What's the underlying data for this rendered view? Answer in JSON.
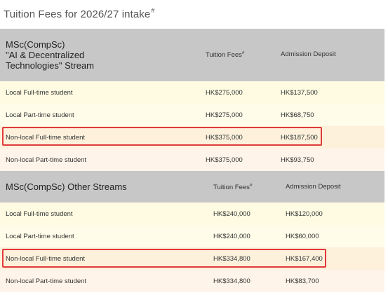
{
  "title": {
    "text": "Tuition Fees for 2026/27 intake",
    "mark": "#"
  },
  "sections": [
    {
      "stream_title": "MSc(CompSc) \"AI & Decentralized Technologies\" Stream",
      "stream_title_lines": [
        "MSc(CompSc)",
        "\"AI & Decentralized",
        "Technologies\" Stream"
      ],
      "col_tuition": "Tuition Fees",
      "col_tuition_mark": "#",
      "col_deposit": "Admission Deposit",
      "rows": [
        {
          "label": "Local Full-time student",
          "tuition": "HK$275,000",
          "deposit": "HK$137,500"
        },
        {
          "label": "Local Part-time student",
          "tuition": "HK$275,000",
          "deposit": "HK$68,750"
        },
        {
          "label": "Non-local Full-time student",
          "tuition": "HK$375,000",
          "deposit": "HK$187,500",
          "highlighted": true
        },
        {
          "label": "Non-local Part-time student",
          "tuition": "HK$375,000",
          "deposit": "HK$93,750"
        }
      ]
    },
    {
      "stream_title": "MSc(CompSc) Other Streams",
      "col_tuition": "Tuition Fees",
      "col_tuition_mark": "#",
      "col_deposit": "Admission Deposit",
      "rows": [
        {
          "label": "Local Full-time student",
          "tuition": "HK$240,000",
          "deposit": "HK$120,000"
        },
        {
          "label": "Local Part-time student",
          "tuition": "HK$240,000",
          "deposit": "HK$60,000"
        },
        {
          "label": "Non-local Full-time student",
          "tuition": "HK$334,800",
          "deposit": "HK$167,400",
          "highlighted": true
        },
        {
          "label": "Non-local Part-time student",
          "tuition": "HK$334,800",
          "deposit": "HK$83,700"
        }
      ]
    }
  ],
  "colors": {
    "header_bg": "#c7c7c7",
    "highlight_border": "#e03a3a",
    "row_alt_1": "#fefbe2",
    "row_alt_2": "#fdf1dc"
  }
}
